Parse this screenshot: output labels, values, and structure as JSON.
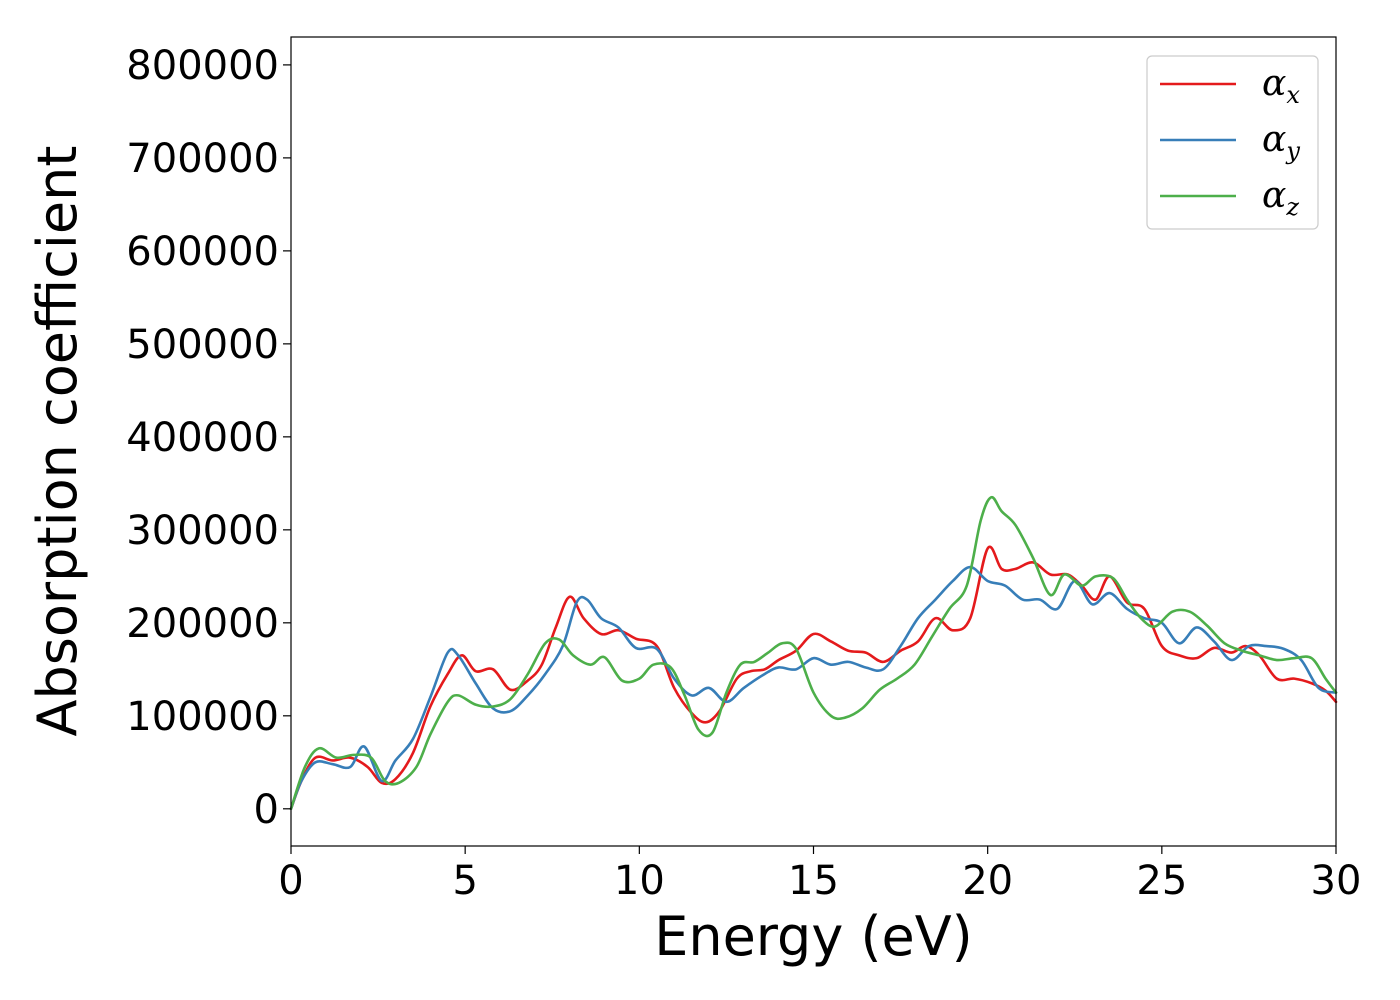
{
  "chart_data": {
    "type": "line",
    "title": "",
    "xlabel": "Energy (eV)",
    "ylabel": "Absorption coefficient",
    "xlim": [
      0,
      30
    ],
    "ylim": [
      -40000,
      830000
    ],
    "xticks": [
      0,
      5,
      10,
      15,
      20,
      25,
      30
    ],
    "xtick_labels": [
      "0",
      "5",
      "10",
      "15",
      "20",
      "25",
      "30"
    ],
    "yticks": [
      0,
      100000,
      200000,
      300000,
      400000,
      500000,
      600000,
      700000,
      800000
    ],
    "ytick_labels": [
      "0",
      "100000",
      "200000",
      "300000",
      "400000",
      "500000",
      "600000",
      "700000",
      "800000"
    ],
    "grid": false,
    "legend_position": "top-right",
    "series": [
      {
        "name": "α",
        "subscript": "x",
        "color": "#e41a1c",
        "x": [
          0,
          0.3,
          0.7,
          1.2,
          1.7,
          2.2,
          2.6,
          3.0,
          3.5,
          4.0,
          4.5,
          4.9,
          5.3,
          5.8,
          6.3,
          6.8,
          7.2,
          7.6,
          8.0,
          8.4,
          8.9,
          9.4,
          9.9,
          10.5,
          11.0,
          11.5,
          11.9,
          12.3,
          12.8,
          13.2,
          13.6,
          14.0,
          14.5,
          15.0,
          15.5,
          16.0,
          16.5,
          17.0,
          17.5,
          18.0,
          18.5,
          19.0,
          19.5,
          20.0,
          20.4,
          20.8,
          21.3,
          21.8,
          22.3,
          22.7,
          23.1,
          23.5,
          24.0,
          24.5,
          25.0,
          25.5,
          26.0,
          26.5,
          27.0,
          27.4,
          27.8,
          28.3,
          28.8,
          29.3,
          29.7,
          30.0
        ],
        "values": [
          0,
          30000,
          55000,
          52000,
          55000,
          45000,
          28000,
          32000,
          60000,
          110000,
          145000,
          165000,
          148000,
          150000,
          128000,
          138000,
          155000,
          195000,
          228000,
          205000,
          188000,
          192000,
          183000,
          175000,
          130000,
          103000,
          93000,
          105000,
          140000,
          148000,
          150000,
          160000,
          170000,
          188000,
          180000,
          170000,
          168000,
          158000,
          170000,
          180000,
          205000,
          192000,
          205000,
          280000,
          258000,
          258000,
          265000,
          252000,
          252000,
          240000,
          225000,
          250000,
          222000,
          215000,
          175000,
          165000,
          162000,
          173000,
          168000,
          175000,
          165000,
          140000,
          140000,
          135000,
          127000,
          115000
        ]
      },
      {
        "name": "α",
        "subscript": "y",
        "color": "#377eb8",
        "x": [
          0,
          0.3,
          0.7,
          1.2,
          1.7,
          2.1,
          2.6,
          3.0,
          3.5,
          4.0,
          4.5,
          4.8,
          5.3,
          5.8,
          6.3,
          6.8,
          7.3,
          7.8,
          8.2,
          8.5,
          8.9,
          9.4,
          9.9,
          10.5,
          11.0,
          11.5,
          12.0,
          12.5,
          13.0,
          13.6,
          14.0,
          14.5,
          15.0,
          15.5,
          16.0,
          16.5,
          17.0,
          17.5,
          18.0,
          18.5,
          19.0,
          19.5,
          20.0,
          20.5,
          21.0,
          21.5,
          22.0,
          22.5,
          23.0,
          23.5,
          24.0,
          24.5,
          25.0,
          25.5,
          26.0,
          26.5,
          27.0,
          27.5,
          28.0,
          28.5,
          29.0,
          29.5,
          30.0
        ],
        "values": [
          0,
          30000,
          50000,
          48000,
          45000,
          67000,
          30000,
          52000,
          75000,
          120000,
          168000,
          165000,
          135000,
          108000,
          105000,
          122000,
          145000,
          175000,
          222000,
          225000,
          205000,
          195000,
          173000,
          172000,
          140000,
          122000,
          130000,
          115000,
          130000,
          145000,
          152000,
          150000,
          162000,
          155000,
          158000,
          152000,
          150000,
          175000,
          205000,
          225000,
          245000,
          260000,
          245000,
          240000,
          225000,
          225000,
          215000,
          245000,
          220000,
          232000,
          215000,
          205000,
          200000,
          178000,
          195000,
          180000,
          160000,
          175000,
          175000,
          172000,
          160000,
          130000,
          125000
        ]
      },
      {
        "name": "α",
        "subscript": "z",
        "color": "#4daf4a",
        "x": [
          0,
          0.4,
          0.8,
          1.3,
          1.8,
          2.3,
          2.7,
          3.1,
          3.6,
          4.0,
          4.5,
          4.8,
          5.3,
          5.8,
          6.3,
          6.8,
          7.3,
          7.7,
          8.1,
          8.6,
          9.0,
          9.5,
          10.0,
          10.4,
          10.9,
          11.3,
          11.7,
          12.1,
          12.5,
          12.9,
          13.3,
          13.7,
          14.1,
          14.5,
          15.0,
          15.5,
          15.9,
          16.4,
          16.9,
          17.4,
          17.9,
          18.4,
          18.9,
          19.4,
          19.8,
          20.1,
          20.4,
          20.8,
          21.3,
          21.8,
          22.2,
          22.7,
          23.1,
          23.6,
          24.0,
          24.4,
          24.8,
          25.3,
          25.8,
          26.3,
          26.8,
          27.3,
          27.8,
          28.3,
          28.8,
          29.3,
          29.7,
          30.0
        ],
        "values": [
          0,
          45000,
          65000,
          55000,
          58000,
          55000,
          30000,
          28000,
          45000,
          80000,
          115000,
          122000,
          112000,
          110000,
          118000,
          145000,
          178000,
          182000,
          165000,
          155000,
          163000,
          138000,
          140000,
          155000,
          152000,
          122000,
          85000,
          82000,
          125000,
          155000,
          158000,
          168000,
          178000,
          172000,
          125000,
          100000,
          98000,
          108000,
          128000,
          140000,
          155000,
          185000,
          215000,
          240000,
          310000,
          335000,
          320000,
          305000,
          270000,
          230000,
          252000,
          240000,
          250000,
          248000,
          225000,
          205000,
          196000,
          212000,
          212000,
          197000,
          178000,
          170000,
          165000,
          160000,
          162000,
          162000,
          140000,
          125000
        ]
      }
    ]
  }
}
